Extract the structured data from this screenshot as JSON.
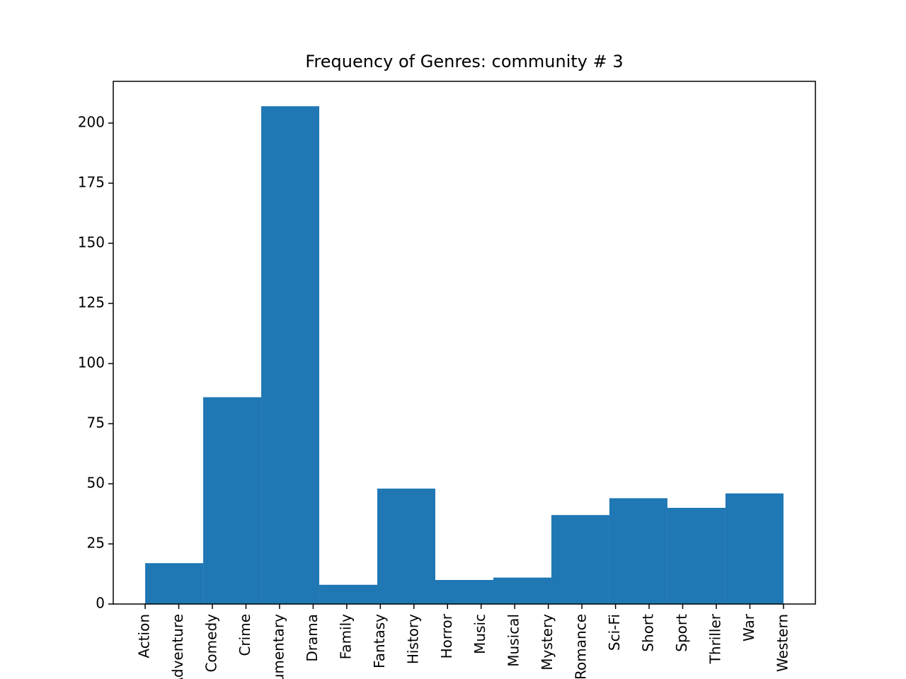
{
  "chart_data": {
    "type": "histogram",
    "title": "Frequency of Genres: community # 3",
    "bins": [
      0,
      1.7273,
      3.4545,
      5.1818,
      6.9091,
      8.6364,
      10.3636,
      12.0909,
      13.8182,
      15.5455,
      17.2727,
      19
    ],
    "values": [
      17,
      86,
      207,
      8,
      48,
      10,
      11,
      37,
      44,
      40,
      46
    ],
    "color": "#1f77b4",
    "xlim": [
      -0.95,
      19.95
    ],
    "ylim": [
      0,
      217.35
    ],
    "xticks": [
      {
        "value": 0,
        "label": "Action"
      },
      {
        "value": 1,
        "label": "Adventure"
      },
      {
        "value": 2,
        "label": "Comedy"
      },
      {
        "value": 3,
        "label": "Crime"
      },
      {
        "value": 4,
        "label": "Documentary"
      },
      {
        "value": 5,
        "label": "Drama"
      },
      {
        "value": 6,
        "label": "Family"
      },
      {
        "value": 7,
        "label": "Fantasy"
      },
      {
        "value": 8,
        "label": "History"
      },
      {
        "value": 9,
        "label": "Horror"
      },
      {
        "value": 10,
        "label": "Music"
      },
      {
        "value": 11,
        "label": "Musical"
      },
      {
        "value": 12,
        "label": "Mystery"
      },
      {
        "value": 13,
        "label": "Romance"
      },
      {
        "value": 14,
        "label": "Sci-Fi"
      },
      {
        "value": 15,
        "label": "Short"
      },
      {
        "value": 16,
        "label": "Sport"
      },
      {
        "value": 17,
        "label": "Thriller"
      },
      {
        "value": 18,
        "label": "War"
      },
      {
        "value": 19,
        "label": "Western"
      }
    ],
    "yticks": [
      0,
      25,
      50,
      75,
      100,
      125,
      150,
      175,
      200
    ]
  }
}
